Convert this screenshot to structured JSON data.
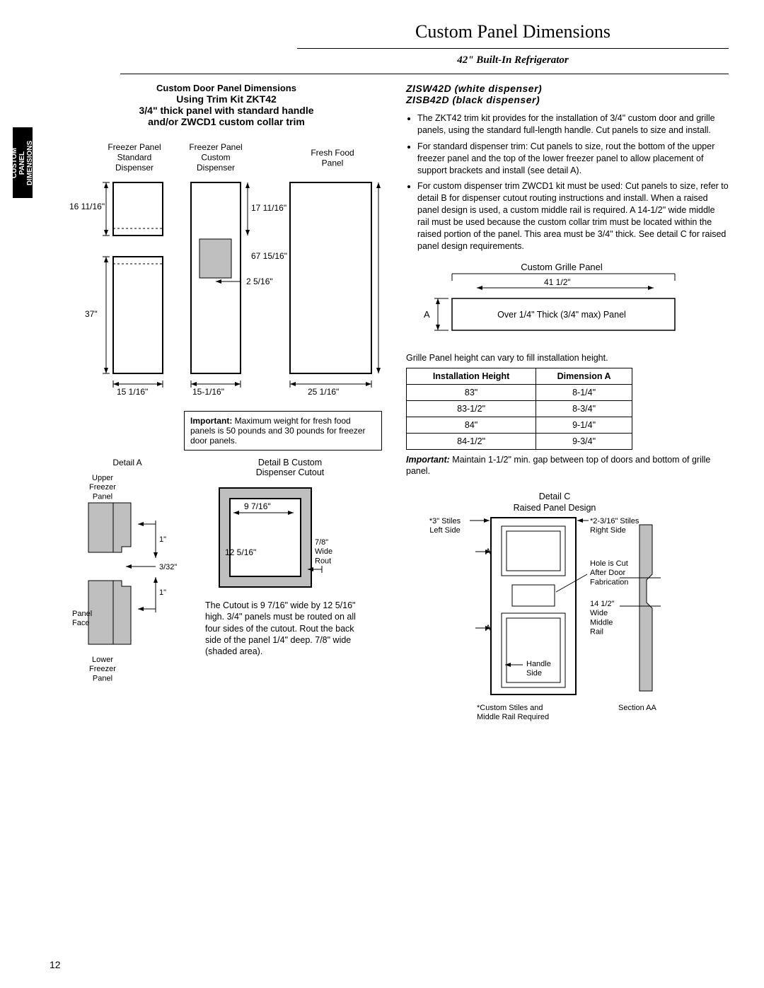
{
  "page": {
    "title": "Custom Panel Dimensions",
    "subtitle": "42\" Built-In Refrigerator",
    "sideTab": "CUSTOM PANEL\nDIMENSIONS",
    "pageNumber": "12"
  },
  "left": {
    "hdr1": "Custom Door Panel Dimensions",
    "hdr2": "Using Trim Kit ZKT42",
    "hdr3": "3/4\" thick panel with standard handle",
    "hdr4": "and/or ZWCD1 custom collar trim",
    "panels": {
      "fp_std_label": "Freezer Panel\nStandard\nDispenser",
      "fp_cust_label": "Freezer Panel\nCustom\nDispenser",
      "ff_label": "Fresh Food\nPanel",
      "h_upper": "16 11/16\"",
      "h_lower": "37\"",
      "h_cust_upper": "17 11/16\"",
      "h_total": "67 15/16\"",
      "w_slot": "2 5/16\"",
      "w_left": "15 1/16\"",
      "w_mid": "15-1/16\"",
      "w_right": "25 1/16\""
    },
    "important": "Important: Maximum weight for fresh food panels is 50 pounds and 30 pounds for freezer door panels.",
    "detailA": {
      "title": "Detail A",
      "upper": "Upper\nFreezer\nPanel",
      "lower": "Lower\nFreezer\nPanel",
      "face": "Panel\nFace",
      "gap1": "1\"",
      "gap2": "3/32\"",
      "gap3": "1\""
    },
    "detailB": {
      "title": "Detail B Custom\nDispenser Cutout",
      "w": "9 7/16\"",
      "h": "12 5/16\"",
      "rout": "7/8\"\nWide\nRout",
      "caption": "The Cutout is 9 7/16\" wide by 12 5/16\" high. 3/4\" panels must be routed on all four sides of the cutout. Rout the back side of the panel 1/4\" deep. 7/8\" wide (shaded area)."
    }
  },
  "right": {
    "model1": "ZISW42D (white dispenser)",
    "model2": "ZISB42D (black dispenser)",
    "bullet1": "The ZKT42 trim kit provides for the installation of 3/4\" custom door and grille panels, using the standard full-length handle. Cut panels to size and install.",
    "bullet2": "For standard dispenser trim: Cut panels to size, rout the bottom of the upper freezer panel and the top of the lower freezer panel to allow placement of support brackets and install (see detail A).",
    "bullet3": "For custom dispenser trim ZWCD1 kit must be used: Cut panels to size, refer to detail B for dispenser cutout routing instructions and install. When a raised panel design is used, a custom middle rail is required. A 14-1/2\" wide middle rail must be used because the custom collar trim must be located within the raised portion of the panel. This area must be 3/4\" thick. See detail C for raised panel design requirements.",
    "grille": {
      "label": "Custom Grille Panel",
      "width": "41 1/2\"",
      "thick": "Over 1/4\" Thick (3/4\" max) Panel",
      "A": "A"
    },
    "table_caption": "Grille Panel height can vary to fill installation height.",
    "table": {
      "h1": "Installation Height",
      "h2": "Dimension A",
      "rows": [
        [
          "83\"",
          "8-1/4\""
        ],
        [
          "83-1/2\"",
          "8-3/4\""
        ],
        [
          "84\"",
          "9-1/4\""
        ],
        [
          "84-1/2\"",
          "9-3/4\""
        ]
      ]
    },
    "important2": "Important: Maintain 1-1/2\" min. gap between top of doors and bottom of grille panel.",
    "detailC": {
      "title": "Detail C",
      "subtitle": "Raised Panel Design",
      "stiles_l": "*3\" Stiles\nLeft Side",
      "stiles_r": "*2-3/16\" Stiles\nRight Side",
      "hole": "Hole is Cut\nAfter Door\nFabrication",
      "rail": "14 1/2\"\nWide\nMiddle\nRail",
      "handle": "Handle\nSide",
      "foot": "*Custom Stiles and\nMiddle Rail Required",
      "section": "Section AA",
      "A": "A"
    }
  }
}
